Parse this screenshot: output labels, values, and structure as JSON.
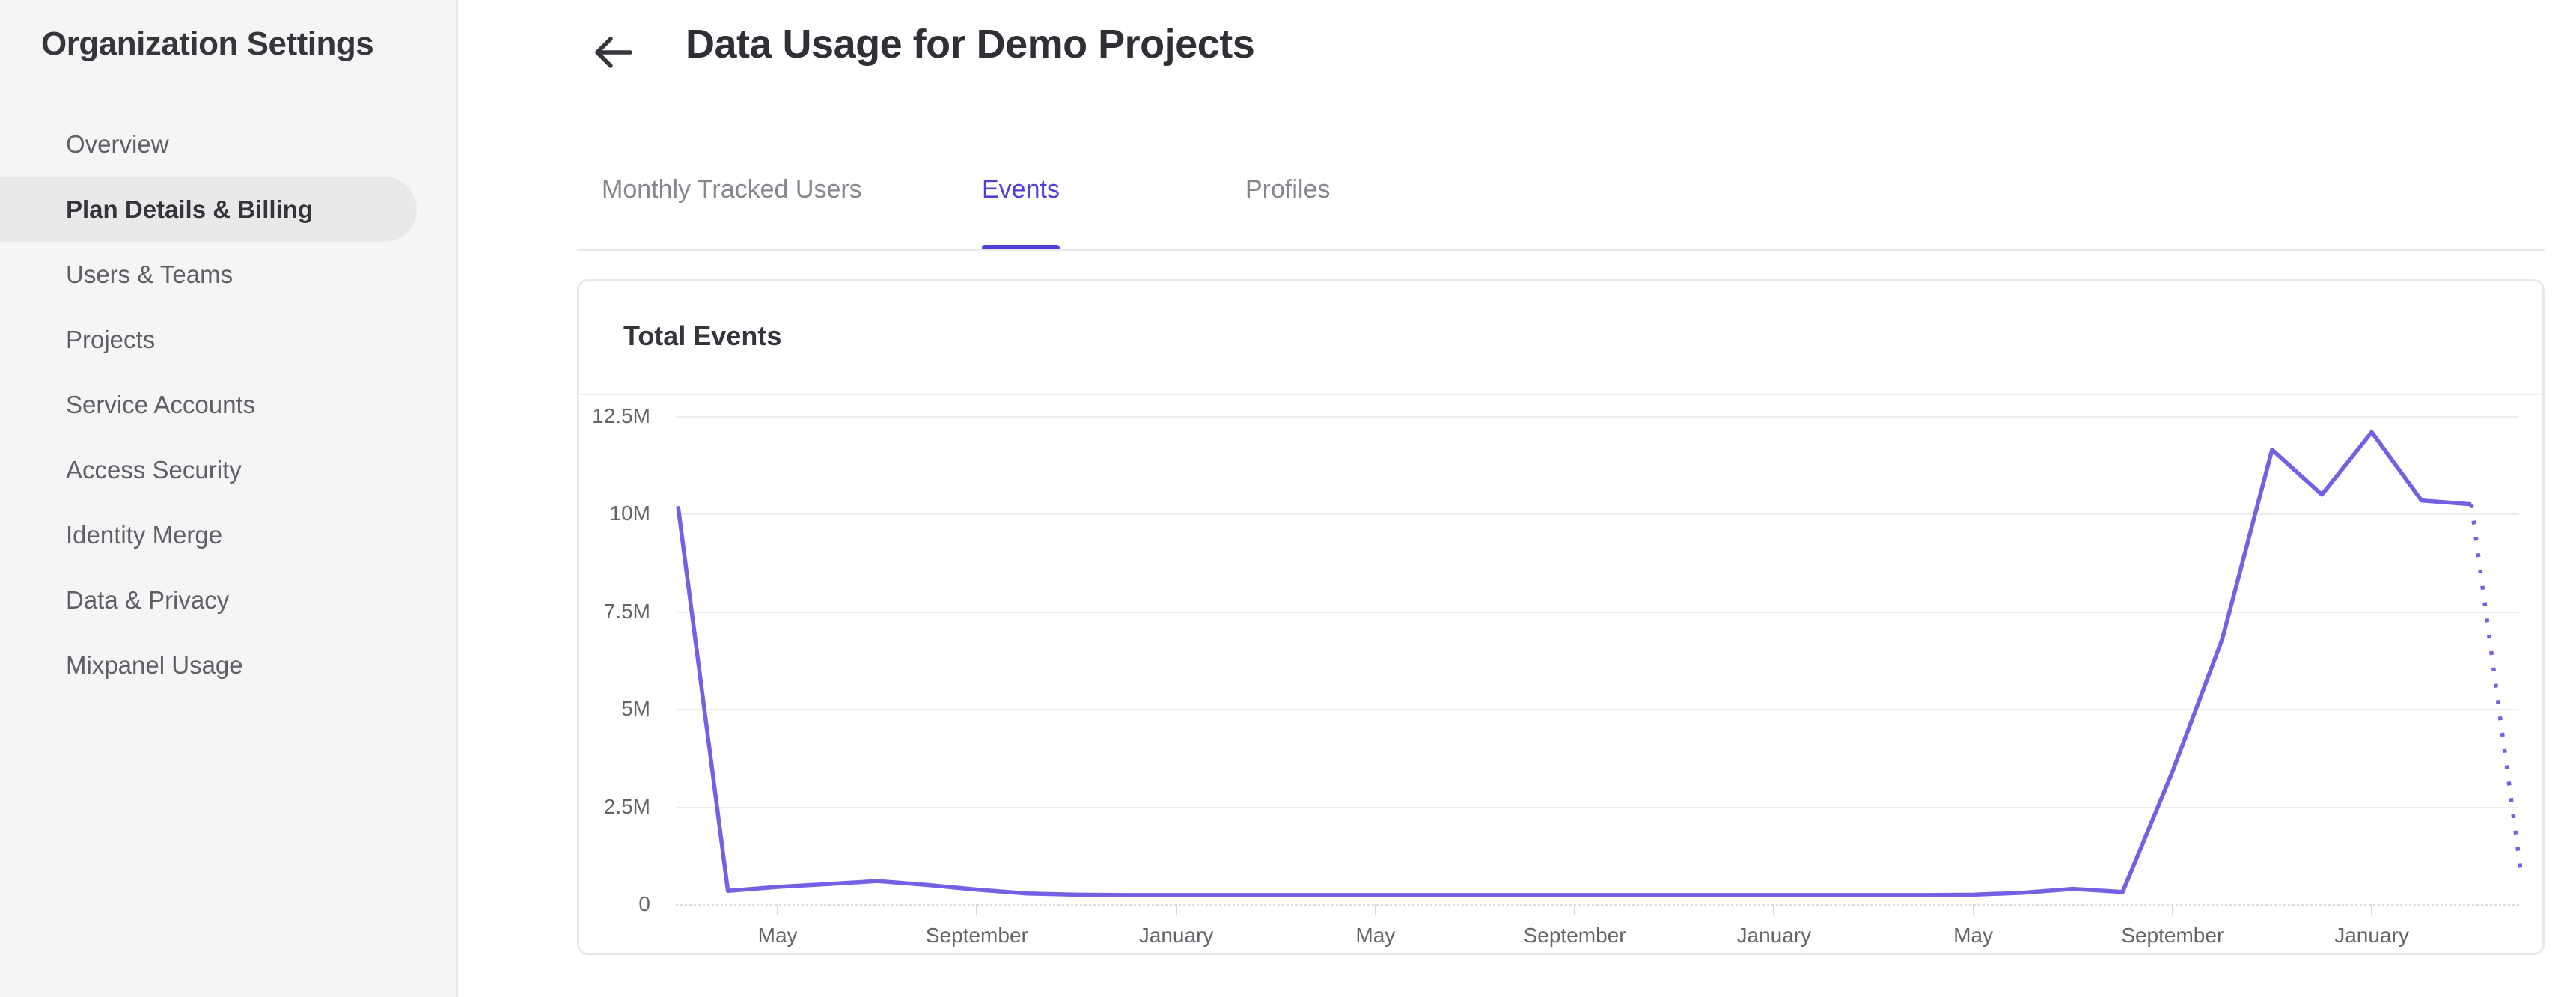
{
  "sidebar": {
    "title": "Organization Settings",
    "items": [
      {
        "label": "Overview",
        "active": false
      },
      {
        "label": "Plan Details & Billing",
        "active": true
      },
      {
        "label": "Users & Teams",
        "active": false
      },
      {
        "label": "Projects",
        "active": false
      },
      {
        "label": "Service Accounts",
        "active": false
      },
      {
        "label": "Access Security",
        "active": false
      },
      {
        "label": "Identity Merge",
        "active": false
      },
      {
        "label": "Data & Privacy",
        "active": false
      },
      {
        "label": "Mixpanel Usage",
        "active": false
      }
    ]
  },
  "header": {
    "title": "Data Usage for Demo Projects"
  },
  "tabs": [
    {
      "label": "Monthly Tracked Users",
      "active": false
    },
    {
      "label": "Events",
      "active": true
    },
    {
      "label": "Profiles",
      "active": false
    }
  ],
  "card": {
    "title": "Total Events"
  },
  "colors": {
    "accent": "#4c40d9",
    "chart_line": "#7262e3",
    "gridline": "#ededee",
    "sidebar_bg": "#f5f5f6",
    "active_pill": "#e9e9ea"
  },
  "chart_data": {
    "type": "line",
    "title": "Total Events",
    "xlabel": "",
    "ylabel": "",
    "ylim_millions": [
      0,
      12.5
    ],
    "y_tick_labels": [
      "12.5M",
      "10M",
      "7.5M",
      "5M",
      "2.5M",
      "0"
    ],
    "x_interval": "monthly",
    "x_tick_labels": [
      "May",
      "September",
      "January",
      "May",
      "September",
      "January",
      "May",
      "September",
      "January"
    ],
    "x_tick_indices": [
      2,
      6,
      10,
      14,
      18,
      22,
      26,
      30,
      34
    ],
    "values_millions": [
      10.0,
      0.15,
      0.25,
      0.32,
      0.4,
      0.3,
      0.18,
      0.08,
      0.05,
      0.04,
      0.04,
      0.04,
      0.04,
      0.04,
      0.04,
      0.04,
      0.04,
      0.04,
      0.04,
      0.04,
      0.04,
      0.04,
      0.04,
      0.04,
      0.04,
      0.04,
      0.05,
      0.1,
      0.2,
      0.12,
      3.2,
      6.6,
      11.45,
      10.3,
      11.9,
      10.15,
      10.05,
      0.6
    ],
    "last_segment_projected_dotted": true,
    "grid": true,
    "legend": "none"
  }
}
